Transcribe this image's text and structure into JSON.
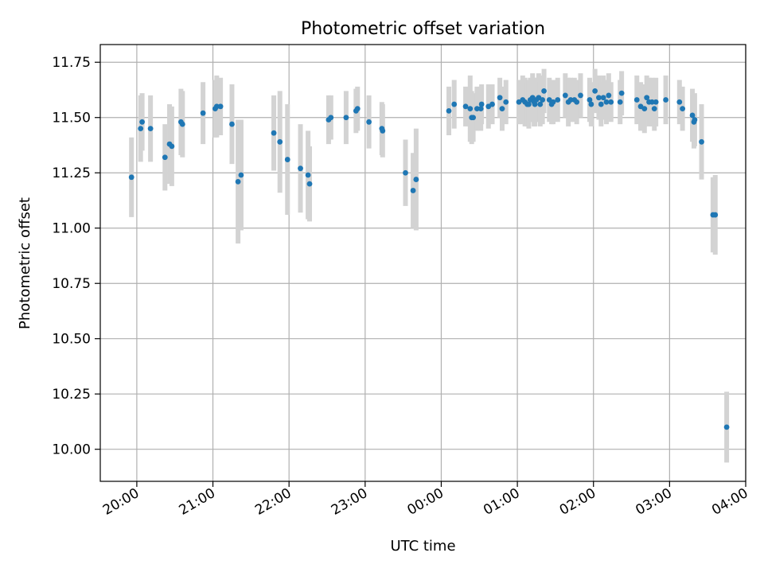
{
  "chart_data": {
    "type": "scatter",
    "title": "Photometric offset variation",
    "xlabel": "UTC time",
    "ylabel": "Photometric offset",
    "x_tick_labels": [
      "20:00",
      "21:00",
      "22:00",
      "23:00",
      "00:00",
      "01:00",
      "02:00",
      "03:00",
      "04:00"
    ],
    "x_ticks_hours": [
      20,
      21,
      22,
      23,
      24,
      25,
      26,
      27,
      28
    ],
    "x_range_hours": [
      19.52,
      28.0
    ],
    "y_ticks": [
      10.0,
      10.25,
      10.5,
      10.75,
      11.0,
      11.25,
      11.5,
      11.75
    ],
    "y_tick_labels": [
      "10.00",
      "10.25",
      "10.50",
      "10.75",
      "11.00",
      "11.25",
      "11.50",
      "11.75"
    ],
    "ylim": [
      9.855,
      11.83
    ],
    "grid": true,
    "marker_color": "#1f77b4",
    "errorbar_color": "#d3d3d3",
    "series": [
      {
        "x_hours": [
          19.93,
          20.05,
          20.07,
          20.18,
          20.37,
          20.43,
          20.46,
          20.58,
          20.6,
          20.87,
          21.03,
          21.05,
          21.1,
          21.25,
          21.33,
          21.37,
          21.8,
          21.88,
          21.98,
          22.15,
          22.25,
          22.27,
          22.52,
          22.55,
          22.75,
          22.88,
          22.9,
          23.05,
          23.22,
          23.23,
          23.53,
          23.63,
          23.67,
          24.1,
          24.17,
          24.32,
          24.38,
          24.4,
          24.42,
          24.47,
          24.52,
          24.53,
          24.62,
          24.67,
          24.77,
          24.8,
          24.85,
          25.02,
          25.07,
          25.1,
          25.13,
          25.15,
          25.17,
          25.2,
          25.22,
          25.23,
          25.25,
          25.28,
          25.3,
          25.33,
          25.35,
          25.42,
          25.45,
          25.47,
          25.53,
          25.63,
          25.67,
          25.7,
          25.75,
          25.78,
          25.83,
          25.95,
          25.97,
          26.02,
          26.07,
          26.1,
          26.13,
          26.17,
          26.2,
          26.23,
          26.35,
          26.37,
          26.57,
          26.62,
          26.67,
          26.7,
          26.73,
          26.77,
          26.8,
          26.82,
          26.95,
          27.13,
          27.17,
          27.3,
          27.32,
          27.33,
          27.42,
          27.57,
          27.6,
          27.75
        ],
        "y": [
          11.23,
          11.45,
          11.48,
          11.45,
          11.32,
          11.38,
          11.37,
          11.48,
          11.47,
          11.52,
          11.54,
          11.55,
          11.55,
          11.47,
          11.21,
          11.24,
          11.43,
          11.39,
          11.31,
          11.27,
          11.24,
          11.2,
          11.49,
          11.5,
          11.5,
          11.53,
          11.54,
          11.48,
          11.45,
          11.44,
          11.25,
          11.17,
          11.22,
          11.53,
          11.56,
          11.55,
          11.54,
          11.5,
          11.5,
          11.54,
          11.54,
          11.56,
          11.55,
          11.56,
          11.59,
          11.54,
          11.57,
          11.57,
          11.58,
          11.57,
          11.56,
          11.56,
          11.58,
          11.59,
          11.57,
          11.56,
          11.58,
          11.59,
          11.56,
          11.58,
          11.62,
          11.58,
          11.56,
          11.57,
          11.58,
          11.6,
          11.57,
          11.58,
          11.58,
          11.57,
          11.6,
          11.58,
          11.56,
          11.62,
          11.59,
          11.56,
          11.59,
          11.57,
          11.6,
          11.57,
          11.57,
          11.61,
          11.58,
          11.55,
          11.54,
          11.59,
          11.57,
          11.57,
          11.54,
          11.57,
          11.58,
          11.57,
          11.54,
          11.51,
          11.48,
          11.49,
          11.39,
          11.06,
          11.06,
          10.1
        ],
        "yerr": [
          0.18,
          0.15,
          0.13,
          0.15,
          0.15,
          0.18,
          0.18,
          0.15,
          0.15,
          0.14,
          0.13,
          0.14,
          0.13,
          0.18,
          0.28,
          0.25,
          0.17,
          0.23,
          0.25,
          0.2,
          0.2,
          0.17,
          0.11,
          0.1,
          0.12,
          0.1,
          0.1,
          0.12,
          0.12,
          0.12,
          0.15,
          0.17,
          0.23,
          0.11,
          0.11,
          0.09,
          0.15,
          0.12,
          0.11,
          0.1,
          0.1,
          0.09,
          0.1,
          0.09,
          0.09,
          0.1,
          0.1,
          0.1,
          0.11,
          0.11,
          0.1,
          0.11,
          0.1,
          0.11,
          0.11,
          0.1,
          0.1,
          0.11,
          0.1,
          0.11,
          0.1,
          0.1,
          0.09,
          0.1,
          0.1,
          0.1,
          0.11,
          0.1,
          0.1,
          0.1,
          0.1,
          0.1,
          0.1,
          0.1,
          0.1,
          0.1,
          0.1,
          0.1,
          0.1,
          0.09,
          0.1,
          0.1,
          0.11,
          0.11,
          0.11,
          0.1,
          0.11,
          0.11,
          0.1,
          0.11,
          0.11,
          0.1,
          0.1,
          0.12,
          0.12,
          0.12,
          0.17,
          0.17,
          0.18,
          0.16
        ]
      }
    ]
  }
}
